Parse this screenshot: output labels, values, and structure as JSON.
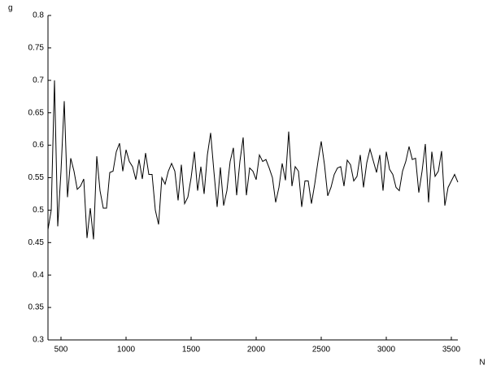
{
  "chart_data": {
    "type": "line",
    "xlabel": "N",
    "ylabel": "g",
    "x": [
      400,
      425,
      450,
      475,
      500,
      525,
      550,
      575,
      600,
      625,
      650,
      675,
      700,
      725,
      750,
      775,
      800,
      825,
      850,
      875,
      900,
      925,
      950,
      975,
      1000,
      1025,
      1050,
      1075,
      1100,
      1125,
      1150,
      1175,
      1200,
      1225,
      1250,
      1275,
      1300,
      1325,
      1350,
      1375,
      1400,
      1425,
      1450,
      1475,
      1500,
      1525,
      1550,
      1575,
      1600,
      1625,
      1650,
      1675,
      1700,
      1725,
      1750,
      1775,
      1800,
      1825,
      1850,
      1875,
      1900,
      1925,
      1950,
      1975,
      2000,
      2025,
      2050,
      2075,
      2100,
      2125,
      2150,
      2175,
      2200,
      2225,
      2250,
      2275,
      2300,
      2325,
      2350,
      2375,
      2400,
      2425,
      2450,
      2475,
      2500,
      2525,
      2550,
      2575,
      2600,
      2625,
      2650,
      2675,
      2700,
      2725,
      2750,
      2775,
      2800,
      2825,
      2850,
      2875,
      2900,
      2925,
      2950,
      2975,
      3000,
      3025,
      3050,
      3075,
      3100,
      3125,
      3150,
      3175,
      3200,
      3225,
      3250,
      3275,
      3300,
      3325,
      3350,
      3375,
      3400,
      3425,
      3450,
      3475,
      3500,
      3525,
      3550
    ],
    "series": [
      {
        "name": "g",
        "color": "#000000",
        "values": [
          0.47,
          0.5,
          0.7,
          0.475,
          0.56,
          0.668,
          0.52,
          0.58,
          0.56,
          0.532,
          0.537,
          0.548,
          0.457,
          0.503,
          0.455,
          0.583,
          0.53,
          0.503,
          0.503,
          0.558,
          0.56,
          0.59,
          0.603,
          0.56,
          0.593,
          0.575,
          0.567,
          0.547,
          0.578,
          0.548,
          0.588,
          0.555,
          0.555,
          0.5,
          0.478,
          0.55,
          0.54,
          0.56,
          0.572,
          0.56,
          0.515,
          0.57,
          0.51,
          0.52,
          0.55,
          0.59,
          0.53,
          0.567,
          0.525,
          0.585,
          0.619,
          0.56,
          0.505,
          0.566,
          0.507,
          0.53,
          0.575,
          0.596,
          0.523,
          0.575,
          0.612,
          0.523,
          0.565,
          0.56,
          0.547,
          0.585,
          0.575,
          0.578,
          0.565,
          0.55,
          0.512,
          0.535,
          0.572,
          0.546,
          0.621,
          0.537,
          0.567,
          0.56,
          0.505,
          0.545,
          0.545,
          0.51,
          0.54,
          0.575,
          0.606,
          0.57,
          0.522,
          0.535,
          0.555,
          0.565,
          0.567,
          0.537,
          0.577,
          0.57,
          0.545,
          0.552,
          0.585,
          0.535,
          0.573,
          0.594,
          0.576,
          0.558,
          0.585,
          0.53,
          0.59,
          0.563,
          0.555,
          0.535,
          0.53,
          0.56,
          0.575,
          0.598,
          0.578,
          0.58,
          0.527,
          0.56,
          0.602,
          0.512,
          0.59,
          0.552,
          0.56,
          0.591,
          0.507,
          0.535,
          0.545,
          0.555,
          0.543
        ]
      }
    ],
    "xlim": [
      400,
      3550
    ],
    "xticks": [
      500,
      1000,
      1500,
      2000,
      2500,
      3000,
      3500
    ],
    "ylim": [
      0.3,
      0.8
    ],
    "yticks": [
      0.3,
      0.35,
      0.4,
      0.45,
      0.5,
      0.55,
      0.6,
      0.65,
      0.7,
      0.75,
      0.8
    ]
  }
}
